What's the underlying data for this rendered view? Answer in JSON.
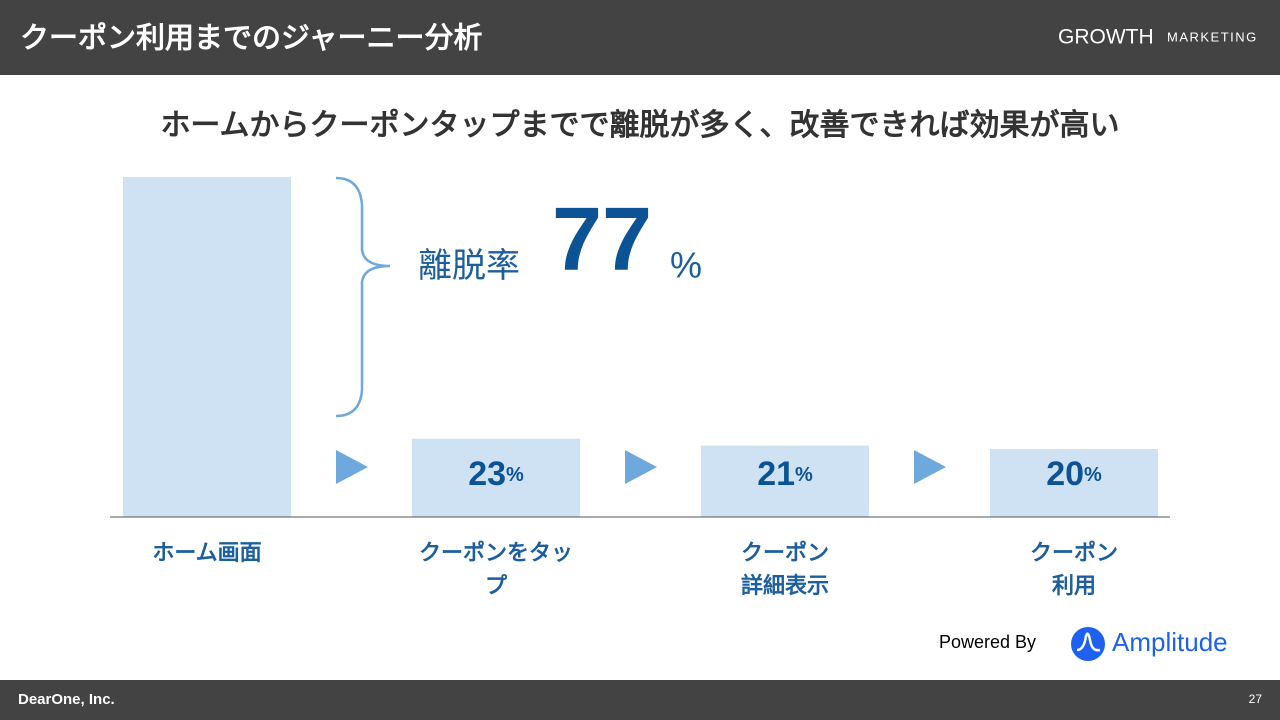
{
  "header": {
    "title": "クーポン利用までのジャーニー分析",
    "logo": "GROWTH",
    "logo_sub": "MARKETING"
  },
  "chart_data": {
    "type": "bar",
    "title": "ホームからクーポンタップまでで離脱が多く、改善できれば効果が高い",
    "categories": [
      "ホーム画面",
      "クーポンをタップ",
      "クーポン\n詳細表示",
      "クーポン\n利用"
    ],
    "values": [
      100,
      23,
      21,
      20
    ],
    "value_labels": [
      null,
      "23%",
      "21%",
      "20%"
    ],
    "color": "#cfe2f3",
    "ylim": [
      0,
      100
    ],
    "annotation": {
      "label": "離脱率",
      "value": 77,
      "unit": "%"
    }
  },
  "powered": {
    "text": "Powered By",
    "brand": "Amplitude"
  },
  "footer": {
    "company": "DearOne, Inc.",
    "page": "27"
  }
}
